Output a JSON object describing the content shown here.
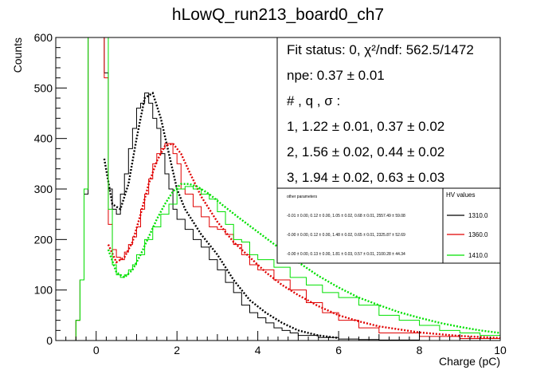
{
  "chart_data": {
    "type": "line",
    "title": "hLowQ_run213_board0_ch7",
    "xlabel": "Charge (pC)",
    "ylabel": "Counts",
    "xlim": [
      -1,
      10
    ],
    "ylim": [
      0,
      600
    ],
    "x_ticks": [
      0,
      2,
      4,
      6,
      8,
      10
    ],
    "y_ticks": [
      0,
      100,
      200,
      300,
      400,
      500,
      600
    ],
    "grid": false,
    "stats": {
      "lines": [
        "Fit status: 0, χ²/ndf: 562.5/1472",
        "npe: 0.37 ± 0.01",
        "# , q , σ :",
        "1, 1.22 ± 0.01, 0.37 ± 0.02",
        "2, 1.56 ± 0.02, 0.44 ± 0.02",
        "3, 1.94 ± 0.02, 0.63 ± 0.03"
      ]
    },
    "legend": {
      "header_left": "other parameters",
      "header_right": "HV values",
      "rows": [
        {
          "params": "-0.01 ± 0.00, 0.12 ± 0.00, 1.05 ± 0.02, 0.68 ± 0.01, 2557.49 ± 59.08",
          "label": "1310.0",
          "color": "#000000"
        },
        {
          "params": "-0.00 ± 0.00, 0.12 ± 0.00, 1.48 ± 0.02, 0.65 ± 0.01, 2325.87 ± 52.69",
          "label": "1360.0",
          "color": "#e00000"
        },
        {
          "params": "-0.00 ± 0.00, 0.13 ± 0.00, 1.81 ± 0.03, 0.57 ± 0.01, 2100.28 ± 44.34",
          "label": "1410.0",
          "color": "#00e000"
        }
      ]
    },
    "series": [
      {
        "name": "1310.0",
        "color": "#000000",
        "hist_x": [
          -1.0,
          -0.5,
          -0.4,
          -0.3,
          -0.2,
          -0.1,
          0.0,
          0.1,
          0.2,
          0.3,
          0.4,
          0.5,
          0.6,
          0.7,
          0.8,
          0.9,
          1.0,
          1.1,
          1.2,
          1.3,
          1.4,
          1.5,
          1.6,
          1.7,
          1.8,
          1.9,
          2.0,
          2.2,
          2.4,
          2.6,
          2.8,
          3.0,
          3.2,
          3.4,
          3.6,
          3.8,
          4.0,
          4.2,
          4.4,
          4.6,
          4.8,
          5.0,
          5.5,
          6.0,
          6.5,
          7.0,
          8.0,
          10.0
        ],
        "hist_y": [
          0,
          40,
          120,
          290,
          650,
          650,
          650,
          650,
          530,
          300,
          260,
          250,
          290,
          330,
          380,
          420,
          460,
          470,
          490,
          470,
          440,
          420,
          370,
          330,
          300,
          260,
          240,
          220,
          200,
          185,
          160,
          140,
          115,
          95,
          70,
          55,
          45,
          35,
          25,
          20,
          15,
          10,
          6,
          3,
          2,
          1,
          0,
          0
        ],
        "fit_x": [
          0.2,
          0.4,
          0.6,
          0.8,
          1.0,
          1.2,
          1.4,
          1.6,
          1.8,
          2.0,
          2.2,
          2.6,
          3.0,
          3.4,
          3.8,
          4.2,
          4.6,
          5.0,
          5.5,
          6.0
        ],
        "fit_y": [
          360,
          270,
          260,
          310,
          400,
          480,
          490,
          440,
          370,
          300,
          260,
          210,
          170,
          120,
          80,
          55,
          35,
          20,
          10,
          5
        ]
      },
      {
        "name": "1360.0",
        "color": "#e00000",
        "hist_x": [
          -1.0,
          -0.5,
          -0.4,
          -0.3,
          -0.2,
          -0.1,
          0.0,
          0.1,
          0.2,
          0.3,
          0.4,
          0.5,
          0.6,
          0.7,
          0.8,
          0.9,
          1.0,
          1.1,
          1.2,
          1.3,
          1.4,
          1.5,
          1.6,
          1.7,
          1.8,
          1.9,
          2.0,
          2.1,
          2.2,
          2.4,
          2.6,
          2.8,
          3.0,
          3.2,
          3.4,
          3.6,
          3.8,
          4.0,
          4.4,
          4.8,
          5.2,
          5.6,
          6.0,
          6.5,
          7.0,
          8.0,
          9.0,
          10.0
        ],
        "hist_y": [
          0,
          40,
          120,
          300,
          650,
          650,
          650,
          650,
          520,
          230,
          180,
          165,
          160,
          175,
          190,
          205,
          225,
          260,
          290,
          320,
          350,
          370,
          380,
          390,
          390,
          370,
          350,
          300,
          290,
          265,
          245,
          225,
          220,
          210,
          190,
          170,
          150,
          140,
          120,
          100,
          75,
          55,
          40,
          25,
          15,
          8,
          4,
          0
        ],
        "fit_x": [
          0.3,
          0.5,
          0.7,
          0.9,
          1.1,
          1.3,
          1.5,
          1.7,
          1.9,
          2.1,
          2.3,
          2.6,
          3.0,
          3.4,
          3.8,
          4.2,
          4.6,
          5.0,
          5.5,
          6.0,
          6.5,
          7.0,
          8.0,
          9.0,
          10.0
        ],
        "fit_y": [
          190,
          155,
          165,
          195,
          250,
          310,
          355,
          385,
          390,
          370,
          335,
          285,
          235,
          195,
          165,
          135,
          110,
          90,
          68,
          50,
          38,
          28,
          16,
          9,
          5
        ]
      },
      {
        "name": "1410.0",
        "color": "#00e000",
        "hist_x": [
          -1.0,
          -0.5,
          -0.4,
          -0.3,
          -0.2,
          -0.1,
          0.0,
          0.1,
          0.2,
          0.3,
          0.4,
          0.5,
          0.6,
          0.7,
          0.8,
          0.9,
          1.0,
          1.2,
          1.4,
          1.6,
          1.8,
          2.0,
          2.2,
          2.4,
          2.6,
          2.8,
          3.0,
          3.2,
          3.4,
          3.6,
          3.8,
          4.0,
          4.4,
          4.8,
          5.2,
          5.6,
          6.0,
          6.5,
          7.0,
          7.5,
          8.0,
          8.5,
          9.0,
          9.5,
          10.0
        ],
        "hist_y": [
          0,
          40,
          120,
          300,
          650,
          650,
          650,
          650,
          600,
          260,
          150,
          130,
          125,
          130,
          140,
          150,
          170,
          200,
          225,
          250,
          270,
          300,
          305,
          300,
          290,
          280,
          255,
          230,
          200,
          195,
          170,
          160,
          145,
          125,
          110,
          95,
          85,
          70,
          50,
          40,
          30,
          20,
          15,
          10,
          0
        ],
        "fit_x": [
          0.3,
          0.5,
          0.7,
          0.9,
          1.1,
          1.3,
          1.5,
          1.7,
          1.9,
          2.1,
          2.3,
          2.5,
          2.8,
          3.1,
          3.5,
          4.0,
          4.5,
          5.0,
          5.5,
          6.0,
          6.5,
          7.0,
          7.5,
          8.0,
          8.5,
          9.0,
          9.5,
          10.0
        ],
        "fit_y": [
          180,
          135,
          125,
          140,
          170,
          205,
          240,
          270,
          295,
          310,
          310,
          305,
          290,
          270,
          245,
          215,
          185,
          155,
          128,
          105,
          85,
          70,
          56,
          45,
          35,
          27,
          20,
          15
        ]
      }
    ]
  }
}
